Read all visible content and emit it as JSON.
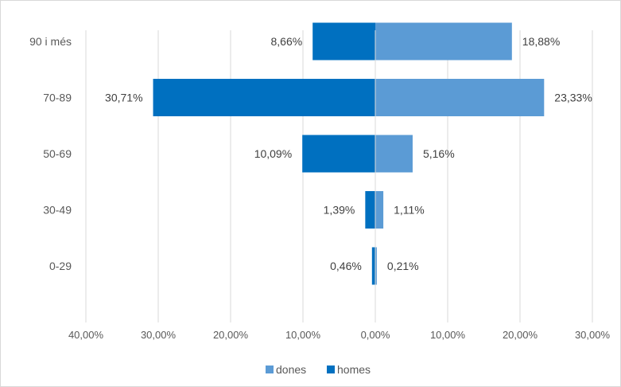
{
  "chart_data": {
    "type": "bar",
    "orientation": "horizontal",
    "layout": "population-pyramid",
    "title": "",
    "xlabel": "",
    "ylabel": "",
    "categories": [
      "0-29",
      "30-49",
      "50-69",
      "70-89",
      "90 i més"
    ],
    "series": [
      {
        "name": "dones",
        "color": "#5b9bd5",
        "values": [
          0.21,
          1.11,
          5.16,
          23.33,
          18.88
        ],
        "labels": [
          "0,21%",
          "1,11%",
          "5,16%",
          "23,33%",
          "18,88%"
        ]
      },
      {
        "name": "homes",
        "color": "#0070c0",
        "values": [
          -0.46,
          -1.39,
          -10.09,
          -30.71,
          -8.66
        ],
        "labels": [
          "0,46%",
          "1,39%",
          "10,09%",
          "30,71%",
          "8,66%"
        ]
      }
    ],
    "xlim": [
      -40,
      30
    ],
    "xticks": [
      -40,
      -30,
      -20,
      -10,
      0,
      10,
      20,
      30
    ],
    "xtick_labels": [
      "40,00%",
      "30,00%",
      "20,00%",
      "10,00%",
      "0,00%",
      "10,00%",
      "20,00%",
      "30,00%"
    ],
    "grid": true,
    "legend": "bottom"
  }
}
